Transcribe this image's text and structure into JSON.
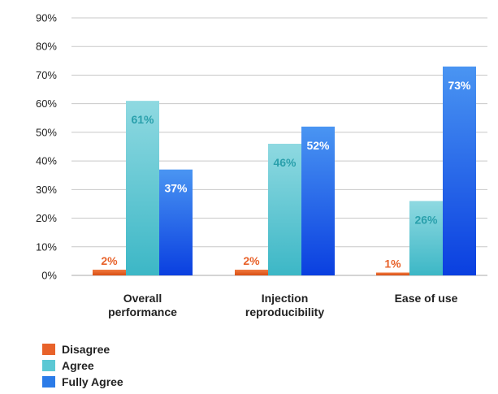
{
  "chart_data": {
    "type": "bar",
    "categories": [
      "Overall performance",
      "Injection reproducibility",
      "Ease of use"
    ],
    "category_lines": [
      [
        "Overall",
        "performance"
      ],
      [
        "Injection",
        "reproducibility"
      ],
      [
        "Ease of use"
      ]
    ],
    "series": [
      {
        "name": "Disagree",
        "values": [
          2,
          2,
          1
        ],
        "labels": [
          "2%",
          "2%",
          "1%"
        ],
        "color": "#e8622a",
        "label_color": "#e8622a"
      },
      {
        "name": "Agree",
        "values": [
          61,
          46,
          26
        ],
        "labels": [
          "61%",
          "46%",
          "26%"
        ],
        "color": "#5cc8d4",
        "label_color": "#2aa0ac"
      },
      {
        "name": "Fully Agree",
        "values": [
          37,
          52,
          73
        ],
        "labels": [
          "37%",
          "52%",
          "73%"
        ],
        "color": "#2b7be8",
        "label_color": "#ffffff"
      }
    ],
    "ylim": [
      0,
      90
    ],
    "yticks": [
      0,
      10,
      20,
      30,
      40,
      50,
      60,
      70,
      80,
      90
    ],
    "ytick_labels": [
      "0%",
      "10%",
      "20%",
      "30%",
      "40%",
      "50%",
      "60%",
      "70%",
      "80%",
      "90%"
    ],
    "grid": true,
    "legend_position": "bottom-left",
    "title": "",
    "xlabel": "",
    "ylabel": ""
  }
}
